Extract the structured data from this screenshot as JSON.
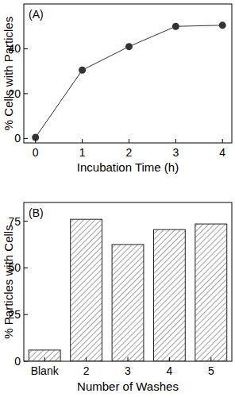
{
  "chart_data": [
    {
      "type": "line",
      "title": "(A)",
      "x_label": "Incubation Time (h)",
      "y_label": "% Cells with Particles",
      "x": [
        0,
        1,
        2,
        3,
        4
      ],
      "values": [
        0.5,
        30.5,
        41,
        50,
        50.5
      ],
      "xlim": [
        -0.25,
        4.2
      ],
      "xticks": [
        0,
        1,
        2,
        3,
        4
      ],
      "ylim": [
        -2,
        60
      ],
      "yticks": [
        0,
        20,
        40
      ],
      "color": "#333333",
      "marker": "circle",
      "line_style": "solid",
      "grid": false
    },
    {
      "type": "bar",
      "title": "(B)",
      "x_label": "Number of Washes",
      "y_label": "% Particles with Cells",
      "categories": [
        "Blank",
        "2",
        "3",
        "4",
        "5"
      ],
      "values": [
        6,
        76,
        62.5,
        70.5,
        73.5
      ],
      "ylim": [
        0,
        85
      ],
      "yticks": [
        0,
        25,
        50,
        75
      ],
      "color": "#444444",
      "grid": false
    }
  ]
}
